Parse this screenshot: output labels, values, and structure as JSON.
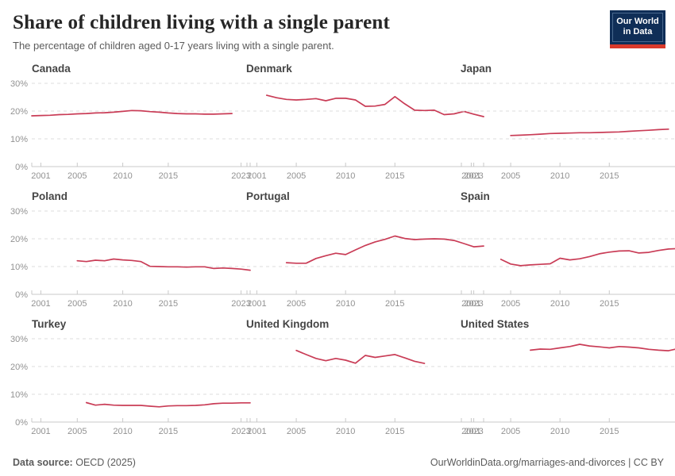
{
  "header": {
    "title": "Share of children living with a single parent",
    "subtitle": "The percentage of children aged 0-17 years living with a single parent.",
    "logo": {
      "line1": "Our World",
      "line2": "in Data",
      "bg_color": "#0f2e57",
      "bar_color": "#d93a2b"
    }
  },
  "footer": {
    "source_label": "Data source:",
    "source_value": "OECD (2025)",
    "link": "OurWorldinData.org/marriages-and-divorces",
    "separator": "|",
    "license": "CC BY"
  },
  "chart_data": {
    "type": "line",
    "title": "Share of children living with a single parent",
    "subtitle": "The percentage of children aged 0-17 years living with a single parent.",
    "layout": "3x3 small multiples, shared axes",
    "line_color": "#c93c56",
    "grid_color": "#dedede",
    "axis_color": "#c9c9c9",
    "tick_label_color": "#929292",
    "x_range": [
      2000,
      2024
    ],
    "x_ticks": [
      2001,
      2005,
      2010,
      2015,
      2023
    ],
    "ylim": [
      0,
      30
    ],
    "y_ticks": [
      0,
      10,
      20,
      30
    ],
    "y_tick_suffix": "%",
    "grid": "dashed horizontal",
    "legend": "none",
    "charts": [
      {
        "title": "Canada",
        "y_axis_labels": true,
        "points": [
          [
            2000,
            18.3
          ],
          [
            2001,
            18.4
          ],
          [
            2002,
            18.5
          ],
          [
            2003,
            18.7
          ],
          [
            2004,
            18.8
          ],
          [
            2005,
            19.0
          ],
          [
            2006,
            19.1
          ],
          [
            2007,
            19.3
          ],
          [
            2008,
            19.4
          ],
          [
            2009,
            19.6
          ],
          [
            2010,
            19.9
          ],
          [
            2011,
            20.2
          ],
          [
            2012,
            20.1
          ],
          [
            2013,
            19.8
          ],
          [
            2014,
            19.6
          ],
          [
            2015,
            19.3
          ],
          [
            2016,
            19.1
          ],
          [
            2017,
            19.0
          ],
          [
            2018,
            19.0
          ],
          [
            2019,
            18.9
          ],
          [
            2020,
            18.9
          ],
          [
            2021,
            19.0
          ],
          [
            2022,
            19.1
          ]
        ]
      },
      {
        "title": "Denmark",
        "y_axis_labels": false,
        "points": [
          [
            2002,
            25.7
          ],
          [
            2003,
            24.8
          ],
          [
            2004,
            24.2
          ],
          [
            2005,
            24.0
          ],
          [
            2006,
            24.2
          ],
          [
            2007,
            24.5
          ],
          [
            2008,
            23.7
          ],
          [
            2009,
            24.6
          ],
          [
            2010,
            24.6
          ],
          [
            2011,
            24.0
          ],
          [
            2012,
            21.7
          ],
          [
            2013,
            21.8
          ],
          [
            2014,
            22.4
          ],
          [
            2015,
            25.2
          ],
          [
            2016,
            22.6
          ],
          [
            2017,
            20.3
          ],
          [
            2018,
            20.2
          ],
          [
            2019,
            20.3
          ],
          [
            2020,
            18.7
          ],
          [
            2021,
            19.0
          ],
          [
            2022,
            19.9
          ],
          [
            2023,
            18.9
          ],
          [
            2024,
            18.0
          ]
        ]
      },
      {
        "title": "Japan",
        "y_axis_labels": false,
        "points": [
          [
            2005,
            11.2
          ],
          [
            2006,
            11.3
          ],
          [
            2007,
            11.5
          ],
          [
            2008,
            11.7
          ],
          [
            2009,
            11.9
          ],
          [
            2010,
            12.0
          ],
          [
            2011,
            12.1
          ],
          [
            2012,
            12.2
          ],
          [
            2013,
            12.2
          ],
          [
            2014,
            12.3
          ],
          [
            2015,
            12.4
          ],
          [
            2016,
            12.5
          ],
          [
            2017,
            12.7
          ],
          [
            2018,
            12.9
          ],
          [
            2019,
            13.1
          ],
          [
            2020,
            13.3
          ],
          [
            2021,
            13.5
          ]
        ]
      },
      {
        "title": "Poland",
        "y_axis_labels": true,
        "points": [
          [
            2005,
            12.1
          ],
          [
            2006,
            11.8
          ],
          [
            2007,
            12.3
          ],
          [
            2008,
            12.1
          ],
          [
            2009,
            12.7
          ],
          [
            2010,
            12.4
          ],
          [
            2011,
            12.2
          ],
          [
            2012,
            11.8
          ],
          [
            2013,
            10.1
          ],
          [
            2014,
            10.0
          ],
          [
            2015,
            9.9
          ],
          [
            2016,
            9.9
          ],
          [
            2017,
            9.8
          ],
          [
            2018,
            9.9
          ],
          [
            2019,
            9.9
          ],
          [
            2020,
            9.3
          ],
          [
            2021,
            9.5
          ],
          [
            2022,
            9.3
          ],
          [
            2023,
            9.1
          ],
          [
            2024,
            8.7
          ]
        ]
      },
      {
        "title": "Portugal",
        "y_axis_labels": false,
        "points": [
          [
            2004,
            11.4
          ],
          [
            2005,
            11.2
          ],
          [
            2006,
            11.2
          ],
          [
            2007,
            12.9
          ],
          [
            2008,
            13.9
          ],
          [
            2009,
            14.8
          ],
          [
            2010,
            14.3
          ],
          [
            2011,
            16.0
          ],
          [
            2012,
            17.6
          ],
          [
            2013,
            18.9
          ],
          [
            2014,
            19.8
          ],
          [
            2015,
            21.0
          ],
          [
            2016,
            20.1
          ],
          [
            2017,
            19.7
          ],
          [
            2018,
            19.9
          ],
          [
            2019,
            20.0
          ],
          [
            2020,
            19.9
          ],
          [
            2021,
            19.4
          ],
          [
            2022,
            18.3
          ],
          [
            2023,
            17.1
          ],
          [
            2024,
            17.4
          ]
        ]
      },
      {
        "title": "Spain",
        "y_axis_labels": false,
        "points": [
          [
            2004,
            12.6
          ],
          [
            2005,
            10.9
          ],
          [
            2006,
            10.3
          ],
          [
            2007,
            10.6
          ],
          [
            2008,
            10.8
          ],
          [
            2009,
            11.0
          ],
          [
            2010,
            13.0
          ],
          [
            2011,
            12.4
          ],
          [
            2012,
            12.8
          ],
          [
            2013,
            13.6
          ],
          [
            2014,
            14.6
          ],
          [
            2015,
            15.2
          ],
          [
            2016,
            15.6
          ],
          [
            2017,
            15.7
          ],
          [
            2018,
            14.9
          ],
          [
            2019,
            15.1
          ],
          [
            2020,
            15.8
          ],
          [
            2021,
            16.3
          ],
          [
            2022,
            16.5
          ],
          [
            2023,
            16.0
          ],
          [
            2024,
            15.9
          ]
        ]
      },
      {
        "title": "Turkey",
        "y_axis_labels": true,
        "points": [
          [
            2006,
            7.0
          ],
          [
            2007,
            6.1
          ],
          [
            2008,
            6.4
          ],
          [
            2009,
            6.1
          ],
          [
            2010,
            6.0
          ],
          [
            2011,
            6.0
          ],
          [
            2012,
            6.0
          ],
          [
            2013,
            5.7
          ],
          [
            2014,
            5.5
          ],
          [
            2015,
            5.8
          ],
          [
            2016,
            5.9
          ],
          [
            2017,
            5.9
          ],
          [
            2018,
            6.0
          ],
          [
            2019,
            6.2
          ],
          [
            2020,
            6.6
          ],
          [
            2021,
            6.8
          ],
          [
            2022,
            6.8
          ],
          [
            2023,
            6.9
          ],
          [
            2024,
            6.9
          ]
        ]
      },
      {
        "title": "United Kingdom",
        "y_axis_labels": false,
        "points": [
          [
            2005,
            25.8
          ],
          [
            2006,
            24.3
          ],
          [
            2007,
            22.9
          ],
          [
            2008,
            22.1
          ],
          [
            2009,
            22.9
          ],
          [
            2010,
            22.3
          ],
          [
            2011,
            21.2
          ],
          [
            2012,
            24.0
          ],
          [
            2013,
            23.3
          ],
          [
            2014,
            23.8
          ],
          [
            2015,
            24.3
          ],
          [
            2016,
            23.1
          ],
          [
            2017,
            21.9
          ],
          [
            2018,
            21.1
          ]
        ]
      },
      {
        "title": "United States",
        "y_axis_labels": false,
        "points": [
          [
            2007,
            25.9
          ],
          [
            2008,
            26.3
          ],
          [
            2009,
            26.2
          ],
          [
            2010,
            26.7
          ],
          [
            2011,
            27.2
          ],
          [
            2012,
            28.0
          ],
          [
            2013,
            27.4
          ],
          [
            2014,
            27.1
          ],
          [
            2015,
            26.7
          ],
          [
            2016,
            27.2
          ],
          [
            2017,
            27.0
          ],
          [
            2018,
            26.7
          ],
          [
            2019,
            26.2
          ],
          [
            2020,
            25.9
          ],
          [
            2021,
            25.7
          ],
          [
            2022,
            26.5
          ],
          [
            2023,
            26.2
          ],
          [
            2024,
            25.3
          ]
        ]
      }
    ]
  }
}
